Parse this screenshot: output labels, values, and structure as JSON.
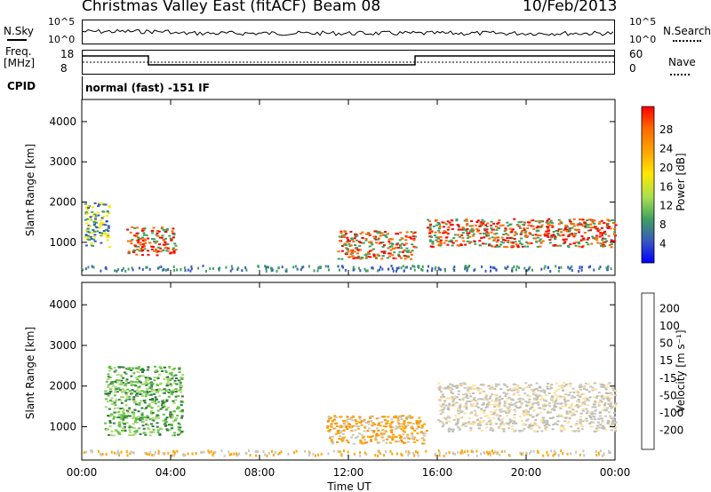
{
  "header": {
    "station": "Christmas Valley East (fitACF)",
    "beam": "Beam 08",
    "date": "10/Feb/2013"
  },
  "noise_panel": {
    "left_label": "N.Sky",
    "right_label": "N.Search",
    "left_ticks": [
      "10^5",
      "10^0"
    ],
    "right_ticks": [
      "10^5",
      "10^0"
    ]
  },
  "freq_panel": {
    "left_label_1": "Freq.",
    "left_label_2": "[MHz]",
    "left_ticks": [
      "18",
      "8"
    ],
    "right_ticks": [
      "60",
      "0"
    ],
    "right_label": "Nave",
    "cpid_label": "CPID"
  },
  "cpid_text": "normal (fast) -151 IF",
  "x_axis": {
    "label": "Time UT",
    "ticks": [
      "00:00",
      "04:00",
      "08:00",
      "12:00",
      "16:00",
      "20:00",
      "00:00"
    ]
  },
  "chart_data": [
    {
      "type": "heatmap",
      "panel": "power",
      "ylabel": "Slant Range [km]",
      "yticks": [
        1000,
        2000,
        3000,
        4000
      ],
      "ylim": [
        180,
        4550
      ],
      "xlim_hours": [
        0,
        24
      ],
      "colorbar_label": "Power [dB]",
      "colorbar_ticks": [
        "28",
        "24",
        "20",
        "16",
        "12",
        "8",
        "4"
      ],
      "colorbar_colors": [
        "#ff0000",
        "#ff6a00",
        "#ffa500",
        "#ffe800",
        "#a8e050",
        "#3fa060",
        "#3858c0",
        "#0000ff"
      ],
      "regions": [
        {
          "t0": 0.1,
          "t1": 1.2,
          "r0": 900,
          "r1": 2000,
          "level": "mid"
        },
        {
          "t0": 2.0,
          "t1": 4.2,
          "r0": 700,
          "r1": 1400,
          "level": "high"
        },
        {
          "t0": 11.5,
          "t1": 15.0,
          "r0": 600,
          "r1": 1300,
          "level": "high"
        },
        {
          "t0": 15.5,
          "t1": 24.0,
          "r0": 900,
          "r1": 1600,
          "level": "high"
        }
      ]
    },
    {
      "type": "heatmap",
      "panel": "velocity",
      "ylabel": "Slant Range [km]",
      "yticks": [
        1000,
        2000,
        3000,
        4000
      ],
      "ylim": [
        180,
        4550
      ],
      "xlim_hours": [
        0,
        24
      ],
      "colorbar_label": "Velocity [m s⁻¹]",
      "colorbar_ticks": [
        "200",
        "100",
        "50",
        "15",
        "-15",
        "-50",
        "-100",
        "-200"
      ],
      "colorbar_colors": [
        "#1830c0",
        "#2f7a40",
        "#60c040",
        "#a8d870",
        "#c8c8c0",
        "#ffc060",
        "#ff9000",
        "#ff5000",
        "#ff0000"
      ],
      "regions": [
        {
          "t0": 1.0,
          "t1": 4.5,
          "r0": 800,
          "r1": 2500,
          "level": "positive"
        },
        {
          "t0": 11.0,
          "t1": 15.5,
          "r0": 600,
          "r1": 1300,
          "level": "negative"
        },
        {
          "t0": 16.0,
          "t1": 24.0,
          "r0": 900,
          "r1": 2100,
          "level": "near-zero"
        }
      ]
    }
  ]
}
